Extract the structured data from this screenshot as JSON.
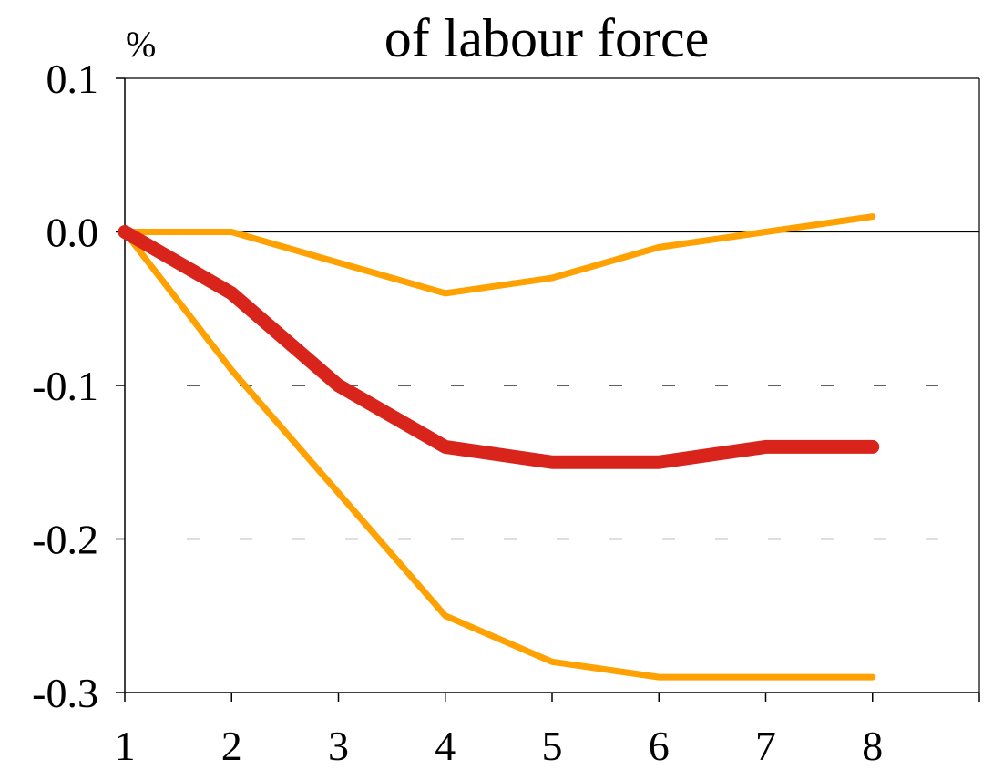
{
  "chart_data": {
    "type": "line",
    "title": "of labour force",
    "ylabel": "%",
    "xlabel": "",
    "x": [
      1,
      2,
      3,
      4,
      5,
      6,
      7,
      8
    ],
    "xticks": [
      "1",
      "2",
      "3",
      "4",
      "5",
      "6",
      "7",
      "8"
    ],
    "xlim": [
      1,
      9
    ],
    "yticks": [
      "0.1",
      "0.0",
      "-0.1",
      "-0.2",
      "-0.3"
    ],
    "ylim": [
      -0.3,
      0.1
    ],
    "grid": "dashed at -0.1 and -0.2; solid zero line",
    "series": [
      {
        "values": [
          0,
          -0.04,
          -0.1,
          -0.14,
          -0.15,
          -0.15,
          -0.14,
          -0.14
        ],
        "color": "#d9241b",
        "style": "thick"
      },
      {
        "values": [
          0,
          0,
          -0.02,
          -0.04,
          -0.03,
          -0.01,
          0,
          0.01
        ],
        "color": "#ffa100",
        "style": "thin"
      },
      {
        "values": [
          0,
          -0.09,
          -0.17,
          -0.25,
          -0.28,
          -0.29,
          -0.29,
          -0.29
        ],
        "color": "#ffa100",
        "style": "thin"
      }
    ]
  }
}
